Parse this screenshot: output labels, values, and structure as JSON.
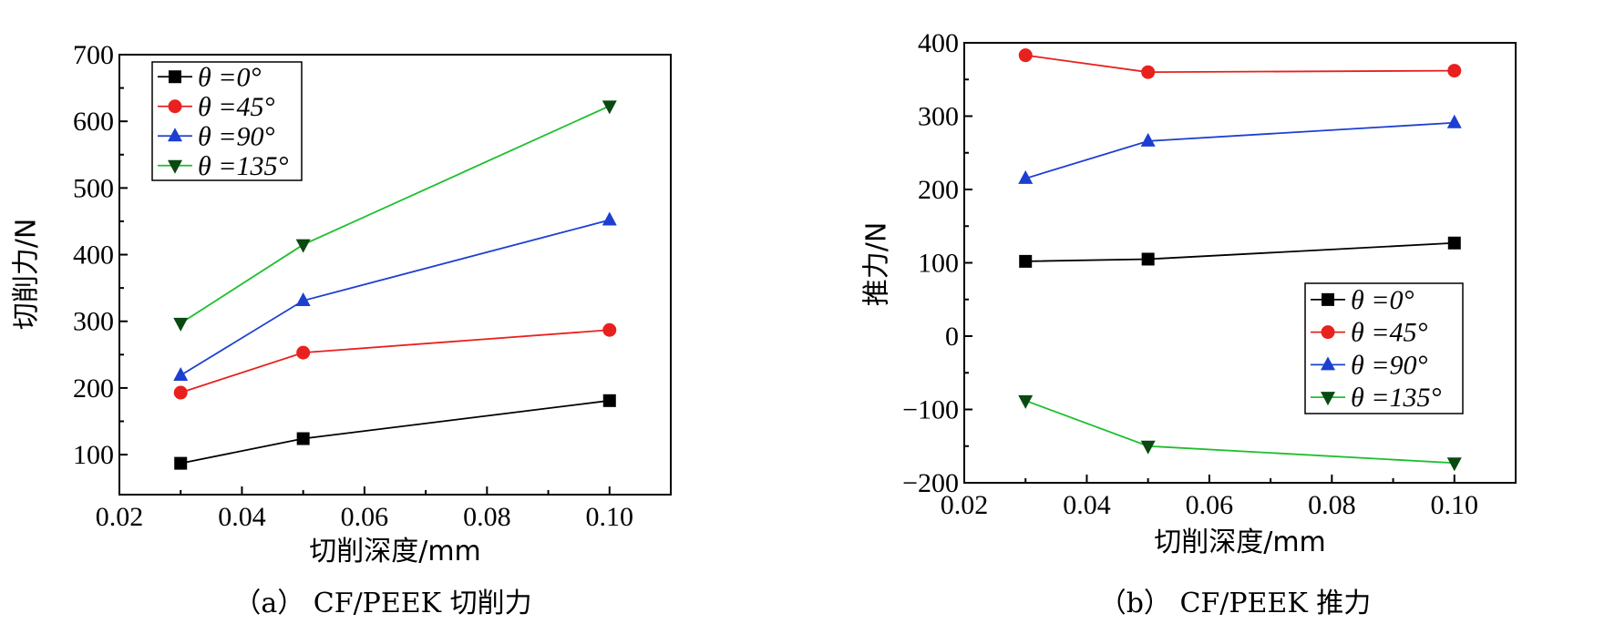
{
  "chart_data": [
    {
      "type": "line",
      "caption": "（a） CF/PEEK 切削力",
      "xlabel": "切削深度/mm",
      "ylabel": "切削力/N",
      "xlim": [
        0.02,
        0.11
      ],
      "ylim": [
        40,
        700
      ],
      "xticks": [
        0.02,
        0.04,
        0.06,
        0.08,
        0.1
      ],
      "xtick_labels": [
        "0.02",
        "0.04",
        "0.06",
        "0.08",
        "0.10"
      ],
      "yticks": [
        100,
        200,
        300,
        400,
        500,
        600,
        700
      ],
      "ytick_labels": [
        "100",
        "200",
        "300",
        "400",
        "500",
        "600",
        "700"
      ],
      "legend_position": "top-left",
      "x": [
        0.03,
        0.05,
        0.1
      ],
      "series": [
        {
          "name": "θ =0°",
          "marker": "square",
          "color": "#000000",
          "values": [
            87,
            124,
            181
          ]
        },
        {
          "name": "θ =45°",
          "marker": "circle",
          "color": "#e8211f",
          "values": [
            193,
            253,
            287
          ]
        },
        {
          "name": "θ =90°",
          "marker": "triangle-up",
          "color": "#1c3fd1",
          "values": [
            219,
            331,
            452
          ]
        },
        {
          "name": "θ =135°",
          "marker": "triangle-down",
          "color": "#1dbf2c",
          "values": [
            297,
            415,
            623
          ]
        }
      ]
    },
    {
      "type": "line",
      "caption": "（b） CF/PEEK 推力",
      "xlabel": "切削深度/mm",
      "ylabel": "推力/N",
      "xlim": [
        0.02,
        0.11
      ],
      "ylim": [
        -200,
        400
      ],
      "xticks": [
        0.02,
        0.04,
        0.06,
        0.08,
        0.1
      ],
      "xtick_labels": [
        "0.02",
        "0.04",
        "0.06",
        "0.08",
        "0.10"
      ],
      "yticks": [
        -200,
        -100,
        0,
        100,
        200,
        300,
        400
      ],
      "ytick_labels": [
        "−200",
        "−100",
        "0",
        "100",
        "200",
        "300",
        "400"
      ],
      "legend_position": "center-right",
      "x": [
        0.03,
        0.05,
        0.1
      ],
      "series": [
        {
          "name": "θ =0°",
          "marker": "square",
          "color": "#000000",
          "values": [
            102,
            105,
            127
          ]
        },
        {
          "name": "θ =45°",
          "marker": "circle",
          "color": "#e8211f",
          "values": [
            383,
            360,
            362
          ]
        },
        {
          "name": "θ =90°",
          "marker": "triangle-up",
          "color": "#1c3fd1",
          "values": [
            215,
            266,
            291
          ]
        },
        {
          "name": "θ =135°",
          "marker": "triangle-down",
          "color": "#1dbf2c",
          "values": [
            -88,
            -150,
            -173
          ]
        }
      ]
    }
  ],
  "marker_fill": {
    "square": "#000000",
    "circle": "#e8211f",
    "triangle-up": "#1c3fd1",
    "triangle-down": "#0a4a12"
  }
}
